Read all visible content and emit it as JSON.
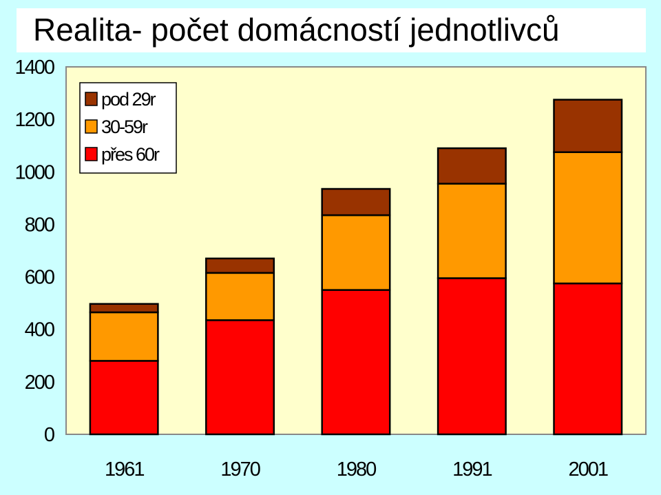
{
  "chart_data": {
    "type": "bar",
    "stacked": true,
    "title": "Realita- počet domácností jednotlivců",
    "categories": [
      "1961",
      "1970",
      "1980",
      "1991",
      "2001"
    ],
    "series": [
      {
        "name": "přes 60r",
        "values": [
          280,
          435,
          550,
          595,
          575
        ]
      },
      {
        "name": "30-59r",
        "values": [
          185,
          180,
          285,
          360,
          500
        ]
      },
      {
        "name": "pod 29r",
        "values": [
          32,
          55,
          100,
          135,
          200
        ]
      }
    ],
    "ylim": [
      0,
      1400
    ],
    "yticks": [
      "0",
      "200",
      "400",
      "600",
      "800",
      "1000",
      "1200",
      "1400"
    ],
    "legend_position": "top-left",
    "grid": false
  },
  "colors": {
    "přes 60r": "#ff0000",
    "30-59r": "#ff9900",
    "pod 29r": "#993300",
    "plot_background": "#ffffcc",
    "page_background": "#ccffff"
  }
}
